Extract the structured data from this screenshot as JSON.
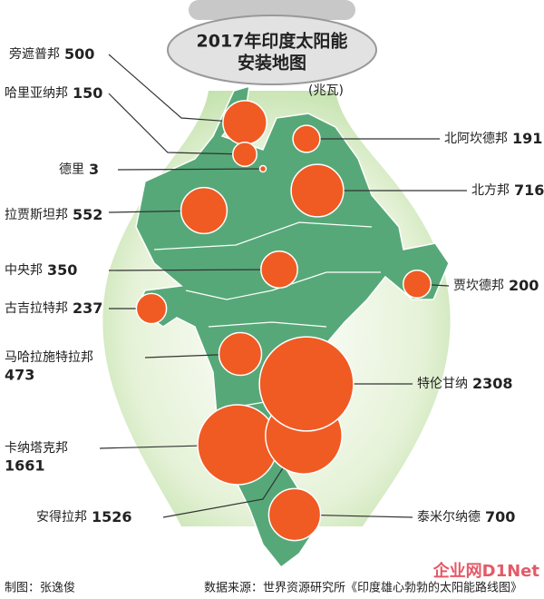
{
  "title_lines": [
    "2017年印度太阳能",
    "安装地图"
  ],
  "unit": "(兆瓦)",
  "regions": [
    {
      "name": "旁遮普邦",
      "value": 500
    },
    {
      "name": "哈里亚纳邦",
      "value": 150
    },
    {
      "name": "德里",
      "value": 3
    },
    {
      "name": "拉贾斯坦邦",
      "value": 552
    },
    {
      "name": "中央邦",
      "value": 350
    },
    {
      "name": "古吉拉特邦",
      "value": 237
    },
    {
      "name": "马哈拉施特拉邦",
      "value": 473
    },
    {
      "name": "卡纳塔克邦",
      "value": 1661
    },
    {
      "name": "安得拉邦",
      "value": 1526
    },
    {
      "name": "泰米尔纳德",
      "value": 700
    },
    {
      "name": "特伦甘纳",
      "value": 2308
    },
    {
      "name": "贾坎德邦",
      "value": 200
    },
    {
      "name": "北方邦",
      "value": 716
    },
    {
      "name": "北阿坎德邦",
      "value": 191
    }
  ],
  "footer": {
    "credit": "制图：张逸俊",
    "source": "数据来源：世界资源研究所《印度雄心勃勃的太阳能路线图》",
    "watermark": "企业网D1Net"
  }
}
